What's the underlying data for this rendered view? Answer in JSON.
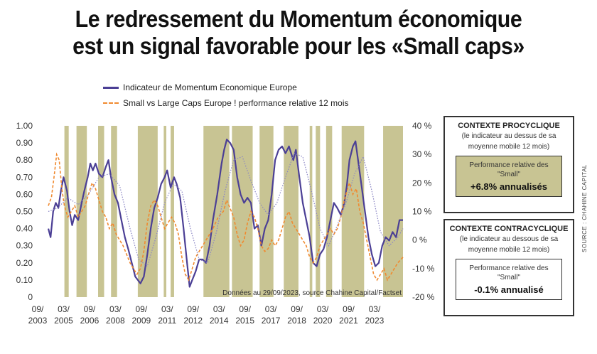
{
  "title_line1": "Le redressement du Momentum économique",
  "title_line2": "est un signal favorable pour les «Small caps»",
  "colors": {
    "momentum": "#4b3f95",
    "smallcaps": "#f08a30",
    "shade": "#c8c493",
    "ma": "#8a85c4"
  },
  "chart_data": {
    "type": "line",
    "title": "Le redressement du Momentum économique est un signal favorable pour les «Small caps»",
    "xlabel": "",
    "ylabel": "",
    "x_start": 2003.67,
    "x_end": 2024.2,
    "ylim": [
      0,
      1.0
    ],
    "y2lim": [
      -20,
      40
    ],
    "y_ticks": [
      "0",
      "0.10",
      "0.20",
      "0.30",
      "0.40",
      "0.50",
      "0.60",
      "0.70",
      "0.80",
      "0.90",
      "1.00"
    ],
    "y2_ticks": [
      "-20 %",
      "-10 %",
      "0 %",
      "10 %",
      "20 %",
      "30 %",
      "40 %"
    ],
    "x_ticks": [
      {
        "top": "09/",
        "bottom": "2003",
        "year": 2003.67
      },
      {
        "top": "03/",
        "bottom": "2005",
        "year": 2005.17
      },
      {
        "top": "09/",
        "bottom": "2006",
        "year": 2006.67
      },
      {
        "top": "03/",
        "bottom": "2008",
        "year": 2008.17
      },
      {
        "top": "09/",
        "bottom": "2009",
        "year": 2009.67
      },
      {
        "top": "03/",
        "bottom": "2011",
        "year": 2011.17
      },
      {
        "top": "09/",
        "bottom": "2012",
        "year": 2012.67
      },
      {
        "top": "03/",
        "bottom": "2014",
        "year": 2014.17
      },
      {
        "top": "09/",
        "bottom": "2015",
        "year": 2015.67
      },
      {
        "top": "03/",
        "bottom": "2017",
        "year": 2017.17
      },
      {
        "top": "09/",
        "bottom": "2018",
        "year": 2018.67
      },
      {
        "top": "03/",
        "bottom": "2020",
        "year": 2020.17
      },
      {
        "top": "09/",
        "bottom": "2021",
        "year": 2021.67
      },
      {
        "top": "03/",
        "bottom": "2023",
        "year": 2023.17
      }
    ],
    "shaded_periods": [
      [
        2004.6,
        2004.85
      ],
      [
        2005.3,
        2005.9
      ],
      [
        2006.55,
        2006.9
      ],
      [
        2007.3,
        2007.65
      ],
      [
        2008.85,
        2010.0
      ],
      [
        2010.35,
        2010.5
      ],
      [
        2010.75,
        2010.95
      ],
      [
        2012.65,
        2014.15
      ],
      [
        2014.3,
        2015.5
      ],
      [
        2015.9,
        2016.7
      ],
      [
        2017.3,
        2018.15
      ],
      [
        2018.8,
        2018.95
      ],
      [
        2019.15,
        2019.4
      ],
      [
        2019.75,
        2020.1
      ],
      [
        2020.65,
        2021.95
      ],
      [
        2023.05,
        2024.2
      ]
    ],
    "series": [
      {
        "name": "Indicateur de Momentum Economique Europe",
        "axis": "left",
        "style": "solid",
        "points": [
          [
            2003.67,
            0.4
          ],
          [
            2003.8,
            0.35
          ],
          [
            2003.95,
            0.5
          ],
          [
            2004.1,
            0.55
          ],
          [
            2004.25,
            0.52
          ],
          [
            2004.4,
            0.62
          ],
          [
            2004.55,
            0.7
          ],
          [
            2004.75,
            0.62
          ],
          [
            2004.9,
            0.5
          ],
          [
            2005.05,
            0.42
          ],
          [
            2005.2,
            0.48
          ],
          [
            2005.4,
            0.45
          ],
          [
            2005.6,
            0.55
          ],
          [
            2005.75,
            0.62
          ],
          [
            2005.95,
            0.7
          ],
          [
            2006.1,
            0.78
          ],
          [
            2006.25,
            0.74
          ],
          [
            2006.4,
            0.78
          ],
          [
            2006.6,
            0.72
          ],
          [
            2006.8,
            0.7
          ],
          [
            2007.0,
            0.76
          ],
          [
            2007.15,
            0.8
          ],
          [
            2007.3,
            0.7
          ],
          [
            2007.5,
            0.6
          ],
          [
            2007.7,
            0.55
          ],
          [
            2007.9,
            0.45
          ],
          [
            2008.1,
            0.35
          ],
          [
            2008.3,
            0.28
          ],
          [
            2008.5,
            0.2
          ],
          [
            2008.7,
            0.12
          ],
          [
            2008.85,
            0.1
          ],
          [
            2009.0,
            0.08
          ],
          [
            2009.2,
            0.12
          ],
          [
            2009.4,
            0.25
          ],
          [
            2009.6,
            0.4
          ],
          [
            2009.8,
            0.52
          ],
          [
            2010.0,
            0.58
          ],
          [
            2010.2,
            0.66
          ],
          [
            2010.4,
            0.7
          ],
          [
            2010.55,
            0.74
          ],
          [
            2010.75,
            0.64
          ],
          [
            2010.95,
            0.7
          ],
          [
            2011.1,
            0.66
          ],
          [
            2011.3,
            0.58
          ],
          [
            2011.5,
            0.4
          ],
          [
            2011.7,
            0.2
          ],
          [
            2011.85,
            0.06
          ],
          [
            2012.0,
            0.1
          ],
          [
            2012.2,
            0.15
          ],
          [
            2012.4,
            0.22
          ],
          [
            2012.6,
            0.22
          ],
          [
            2012.8,
            0.2
          ],
          [
            2013.0,
            0.3
          ],
          [
            2013.2,
            0.45
          ],
          [
            2013.45,
            0.6
          ],
          [
            2013.7,
            0.78
          ],
          [
            2013.85,
            0.86
          ],
          [
            2014.0,
            0.92
          ],
          [
            2014.2,
            0.9
          ],
          [
            2014.4,
            0.86
          ],
          [
            2014.6,
            0.7
          ],
          [
            2014.8,
            0.6
          ],
          [
            2015.0,
            0.55
          ],
          [
            2015.2,
            0.58
          ],
          [
            2015.4,
            0.55
          ],
          [
            2015.6,
            0.4
          ],
          [
            2015.8,
            0.42
          ],
          [
            2016.0,
            0.3
          ],
          [
            2016.2,
            0.4
          ],
          [
            2016.4,
            0.45
          ],
          [
            2016.6,
            0.6
          ],
          [
            2016.8,
            0.8
          ],
          [
            2017.0,
            0.86
          ],
          [
            2017.2,
            0.88
          ],
          [
            2017.4,
            0.84
          ],
          [
            2017.6,
            0.88
          ],
          [
            2017.85,
            0.8
          ],
          [
            2018.0,
            0.86
          ],
          [
            2018.2,
            0.7
          ],
          [
            2018.4,
            0.55
          ],
          [
            2018.6,
            0.45
          ],
          [
            2018.8,
            0.35
          ],
          [
            2019.0,
            0.2
          ],
          [
            2019.2,
            0.18
          ],
          [
            2019.4,
            0.25
          ],
          [
            2019.6,
            0.28
          ],
          [
            2019.8,
            0.35
          ],
          [
            2020.0,
            0.45
          ],
          [
            2020.2,
            0.55
          ],
          [
            2020.4,
            0.52
          ],
          [
            2020.6,
            0.48
          ],
          [
            2020.8,
            0.55
          ],
          [
            2020.95,
            0.65
          ],
          [
            2021.1,
            0.8
          ],
          [
            2021.3,
            0.88
          ],
          [
            2021.45,
            0.91
          ],
          [
            2021.6,
            0.8
          ],
          [
            2021.8,
            0.65
          ],
          [
            2022.0,
            0.5
          ],
          [
            2022.2,
            0.35
          ],
          [
            2022.4,
            0.25
          ],
          [
            2022.6,
            0.18
          ],
          [
            2022.8,
            0.2
          ],
          [
            2023.0,
            0.3
          ],
          [
            2023.2,
            0.35
          ],
          [
            2023.4,
            0.33
          ],
          [
            2023.6,
            0.38
          ],
          [
            2023.8,
            0.35
          ],
          [
            2024.0,
            0.45
          ],
          [
            2024.2,
            0.45
          ]
        ]
      },
      {
        "name": "Small vs Large Caps Europe ! performance relative 12 mois",
        "axis": "right",
        "style": "dashed",
        "points": [
          [
            2003.67,
            12
          ],
          [
            2003.85,
            15
          ],
          [
            2004.0,
            22
          ],
          [
            2004.15,
            30
          ],
          [
            2004.3,
            28
          ],
          [
            2004.45,
            18
          ],
          [
            2004.6,
            12
          ],
          [
            2004.8,
            8
          ],
          [
            2005.0,
            10
          ],
          [
            2005.2,
            12
          ],
          [
            2005.4,
            8
          ],
          [
            2005.6,
            10
          ],
          [
            2005.8,
            12
          ],
          [
            2006.0,
            16
          ],
          [
            2006.2,
            20
          ],
          [
            2006.4,
            18
          ],
          [
            2006.6,
            14
          ],
          [
            2006.8,
            10
          ],
          [
            2007.0,
            8
          ],
          [
            2007.2,
            4
          ],
          [
            2007.4,
            6
          ],
          [
            2007.6,
            2
          ],
          [
            2007.8,
            0
          ],
          [
            2008.0,
            -2
          ],
          [
            2008.2,
            -5
          ],
          [
            2008.4,
            -8
          ],
          [
            2008.6,
            -10
          ],
          [
            2008.8,
            -12
          ],
          [
            2009.0,
            -10
          ],
          [
            2009.2,
            -4
          ],
          [
            2009.4,
            6
          ],
          [
            2009.6,
            12
          ],
          [
            2009.8,
            14
          ],
          [
            2010.0,
            12
          ],
          [
            2010.2,
            8
          ],
          [
            2010.4,
            4
          ],
          [
            2010.6,
            6
          ],
          [
            2010.8,
            8
          ],
          [
            2011.0,
            6
          ],
          [
            2011.2,
            2
          ],
          [
            2011.4,
            -6
          ],
          [
            2011.6,
            -12
          ],
          [
            2011.8,
            -14
          ],
          [
            2012.0,
            -10
          ],
          [
            2012.2,
            -6
          ],
          [
            2012.4,
            -4
          ],
          [
            2012.6,
            -2
          ],
          [
            2012.8,
            0
          ],
          [
            2013.0,
            2
          ],
          [
            2013.2,
            4
          ],
          [
            2013.5,
            8
          ],
          [
            2013.8,
            10
          ],
          [
            2014.0,
            14
          ],
          [
            2014.2,
            11
          ],
          [
            2014.4,
            8
          ],
          [
            2014.6,
            2
          ],
          [
            2014.8,
            -2
          ],
          [
            2015.0,
            0
          ],
          [
            2015.2,
            6
          ],
          [
            2015.4,
            10
          ],
          [
            2015.6,
            8
          ],
          [
            2015.8,
            4
          ],
          [
            2016.0,
            -2
          ],
          [
            2016.2,
            -4
          ],
          [
            2016.4,
            -3
          ],
          [
            2016.6,
            0
          ],
          [
            2016.8,
            -2
          ],
          [
            2017.0,
            0
          ],
          [
            2017.2,
            4
          ],
          [
            2017.4,
            8
          ],
          [
            2017.6,
            10
          ],
          [
            2017.8,
            6
          ],
          [
            2018.0,
            4
          ],
          [
            2018.2,
            2
          ],
          [
            2018.4,
            0
          ],
          [
            2018.6,
            -2
          ],
          [
            2018.8,
            -6
          ],
          [
            2019.0,
            -8
          ],
          [
            2019.2,
            -6
          ],
          [
            2019.4,
            -2
          ],
          [
            2019.6,
            0
          ],
          [
            2019.8,
            2
          ],
          [
            2020.0,
            4
          ],
          [
            2020.2,
            2
          ],
          [
            2020.4,
            4
          ],
          [
            2020.6,
            8
          ],
          [
            2020.8,
            14
          ],
          [
            2021.0,
            18
          ],
          [
            2021.1,
            20
          ],
          [
            2021.3,
            16
          ],
          [
            2021.5,
            18
          ],
          [
            2021.7,
            10
          ],
          [
            2021.9,
            6
          ],
          [
            2022.1,
            0
          ],
          [
            2022.3,
            -6
          ],
          [
            2022.5,
            -12
          ],
          [
            2022.7,
            -14
          ],
          [
            2022.9,
            -12
          ],
          [
            2023.1,
            -10
          ],
          [
            2023.3,
            -14
          ],
          [
            2023.5,
            -12
          ],
          [
            2023.7,
            -10
          ],
          [
            2023.9,
            -8
          ],
          [
            2024.2,
            -6
          ]
        ]
      },
      {
        "name": "Moyenne mobile 12 mois",
        "axis": "left",
        "style": "dotted",
        "points": [
          [
            2003.67,
            0.5
          ],
          [
            2004.2,
            0.52
          ],
          [
            2004.8,
            0.58
          ],
          [
            2005.4,
            0.54
          ],
          [
            2006.0,
            0.6
          ],
          [
            2006.6,
            0.7
          ],
          [
            2007.2,
            0.72
          ],
          [
            2007.8,
            0.65
          ],
          [
            2008.4,
            0.4
          ],
          [
            2008.9,
            0.22
          ],
          [
            2009.4,
            0.18
          ],
          [
            2009.9,
            0.35
          ],
          [
            2010.4,
            0.55
          ],
          [
            2010.9,
            0.66
          ],
          [
            2011.4,
            0.62
          ],
          [
            2011.9,
            0.4
          ],
          [
            2012.4,
            0.22
          ],
          [
            2012.9,
            0.2
          ],
          [
            2013.4,
            0.38
          ],
          [
            2013.9,
            0.62
          ],
          [
            2014.4,
            0.8
          ],
          [
            2014.9,
            0.82
          ],
          [
            2015.4,
            0.68
          ],
          [
            2015.9,
            0.55
          ],
          [
            2016.4,
            0.48
          ],
          [
            2016.9,
            0.55
          ],
          [
            2017.4,
            0.7
          ],
          [
            2017.9,
            0.84
          ],
          [
            2018.4,
            0.82
          ],
          [
            2018.9,
            0.62
          ],
          [
            2019.4,
            0.4
          ],
          [
            2019.9,
            0.3
          ],
          [
            2020.4,
            0.42
          ],
          [
            2020.9,
            0.55
          ],
          [
            2021.4,
            0.72
          ],
          [
            2021.9,
            0.82
          ],
          [
            2022.4,
            0.62
          ],
          [
            2022.9,
            0.38
          ],
          [
            2023.4,
            0.3
          ],
          [
            2023.9,
            0.35
          ],
          [
            2024.2,
            0.4
          ]
        ]
      }
    ]
  },
  "legend": {
    "item1": "Indicateur de Momentum Economique Europe",
    "item2": "Small vs Large Caps Europe ! performance relative 12 mois"
  },
  "source_note": "Données au 29/09/2023, source Chahine Capital/Factset",
  "box_pro": {
    "title": "CONTEXTE PROCYCLIQUE",
    "subtitle_1": "(le indicateur au dessus de sa",
    "subtitle_2": "moyenne mobile 12 mois)",
    "label_1": "Performance relative des",
    "label_2": "\"Small\"",
    "value": "+6.8% annualisés"
  },
  "box_contra": {
    "title": "CONTEXTE CONTRACYCLIQUE",
    "subtitle_1": "(le indicateur au dessous de sa",
    "subtitle_2": "moyenne mobile 12 mois)",
    "label_1": "Performance relative des",
    "label_2": "\"Small\"",
    "value": "-0.1% annualisé"
  },
  "side_source": "SOURCE : CHAHINE CAPITAL"
}
